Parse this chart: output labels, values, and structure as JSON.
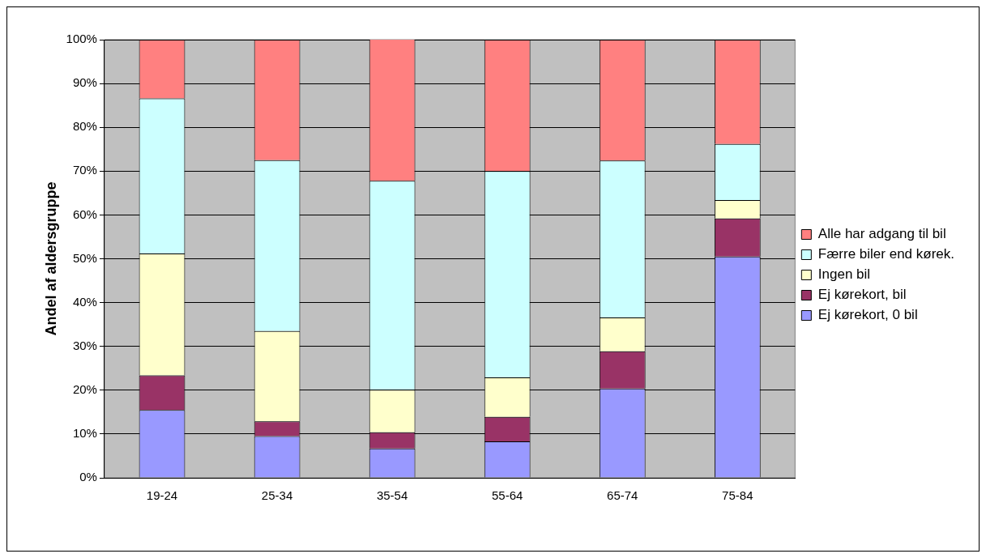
{
  "chart_data": {
    "type": "bar",
    "stacked": true,
    "ylabel": "Andel af aldersgruppe",
    "categories": [
      "19-24",
      "25-34",
      "35-54",
      "55-64",
      "65-74",
      "75-84"
    ],
    "series": [
      {
        "name": "Ej kørekort, 0 bil",
        "color": "#9999ff",
        "values": [
          15.5,
          9.5,
          6.7,
          8.3,
          20.4,
          50.5
        ]
      },
      {
        "name": "Ej kørekort, bil",
        "color": "#993366",
        "values": [
          7.9,
          3.4,
          3.7,
          5.6,
          8.5,
          8.7
        ]
      },
      {
        "name": "Ingen bil",
        "color": "#ffffcc",
        "values": [
          27.8,
          20.6,
          9.7,
          9.0,
          7.7,
          4.2
        ]
      },
      {
        "name": "Færre biler end kørek.",
        "color": "#ccffff",
        "values": [
          35.4,
          39.0,
          47.7,
          47.1,
          35.8,
          12.8
        ]
      },
      {
        "name": "Alle har adgang til bil",
        "color": "#ff8080",
        "values": [
          13.4,
          27.5,
          32.4,
          30.0,
          27.6,
          23.8
        ]
      }
    ],
    "ylim": [
      0,
      100
    ],
    "yticks": [
      {
        "value": 0,
        "label": "0%"
      },
      {
        "value": 10,
        "label": "10%"
      },
      {
        "value": 20,
        "label": "20%"
      },
      {
        "value": 30,
        "label": "30%"
      },
      {
        "value": 40,
        "label": "40%"
      },
      {
        "value": 50,
        "label": "50%"
      },
      {
        "value": 60,
        "label": "60%"
      },
      {
        "value": 70,
        "label": "70%"
      },
      {
        "value": 80,
        "label": "80%"
      },
      {
        "value": 90,
        "label": "90%"
      },
      {
        "value": 100,
        "label": "100%"
      }
    ],
    "grid": "y",
    "legend": "right"
  }
}
